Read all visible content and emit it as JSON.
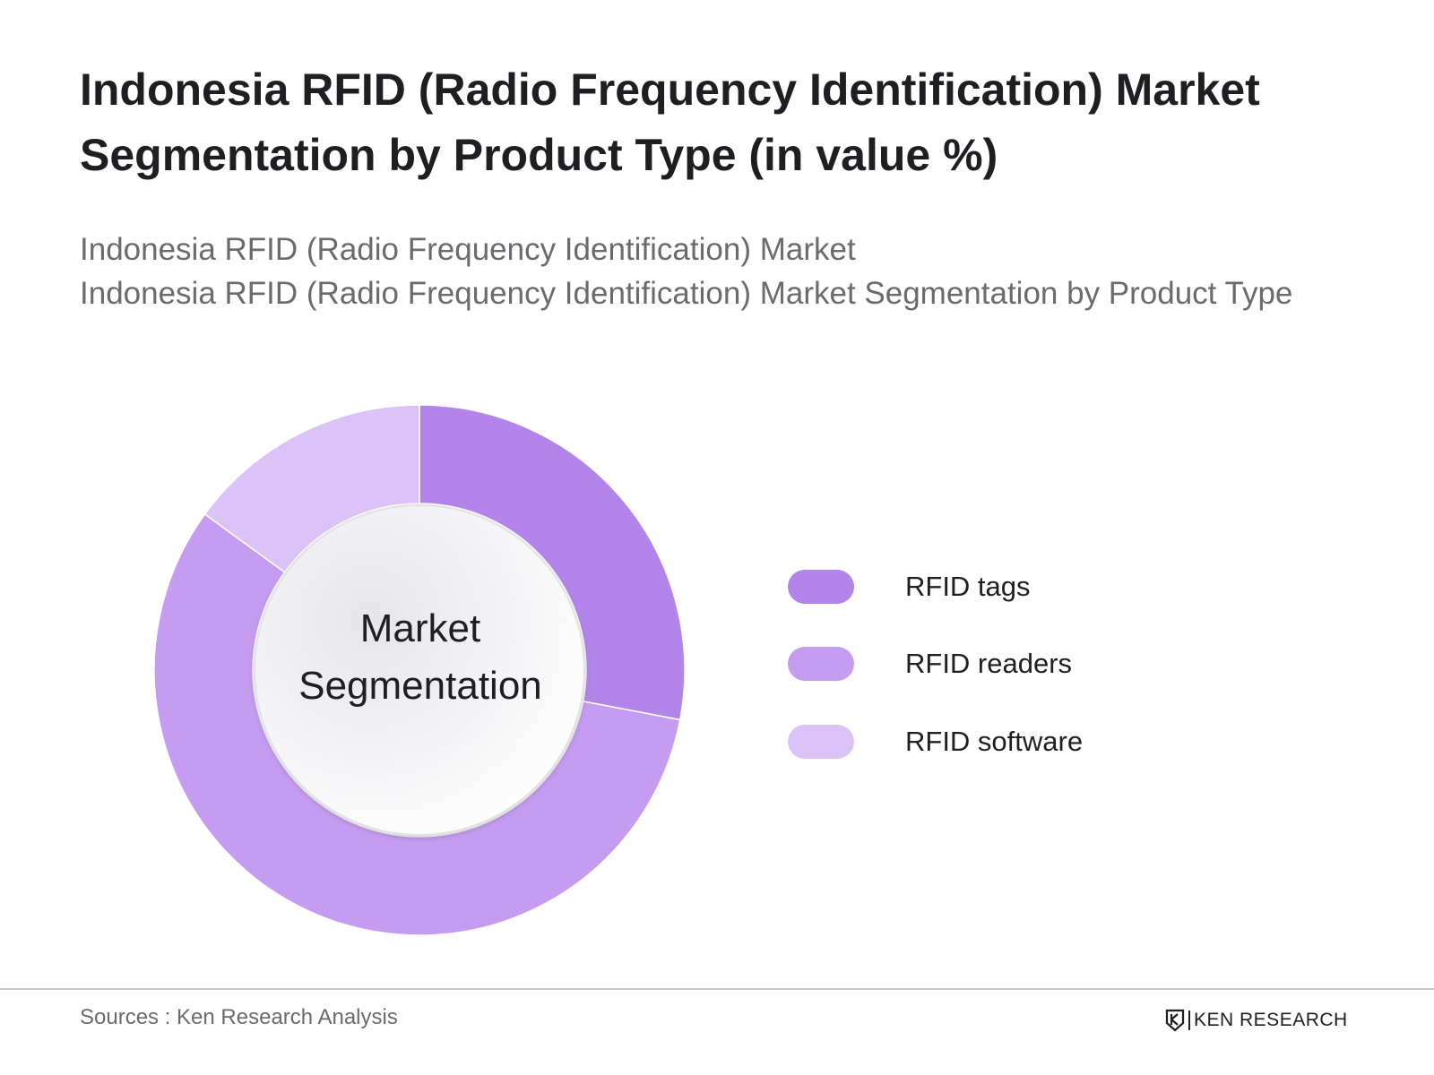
{
  "title": "Indonesia RFID (Radio Frequency Identification) Market Segmentation by Product Type (in value %)",
  "subtitle": {
    "line1": "Indonesia RFID (Radio Frequency Identification) Market",
    "line2": "Indonesia RFID (Radio Frequency Identification) Market Segmentation by Product Type"
  },
  "chart_data": {
    "type": "pie",
    "style": "donut",
    "title": "Indonesia RFID (Radio Frequency Identification) Market Segmentation by Product Type (in value %)",
    "center_label": [
      "Market",
      "Segmentation"
    ],
    "categories": [
      "RFID tags",
      "RFID readers",
      "RFID software"
    ],
    "values": [
      28,
      57,
      15
    ],
    "colors": [
      "#b385eb",
      "#c59cef",
      "#dcc3f7"
    ],
    "start_angle_deg": 0,
    "direction": "clockwise",
    "legend_position": "right"
  },
  "legend": {
    "items": [
      {
        "label": "RFID tags",
        "color": "#b385eb"
      },
      {
        "label": "RFID readers",
        "color": "#c59cef"
      },
      {
        "label": "RFID software",
        "color": "#dcc3f7"
      }
    ]
  },
  "footer": {
    "sources": "Sources : Ken Research Analysis",
    "brand": "KEN RESEARCH",
    "logo_icon": "ken-research-logo-icon"
  }
}
